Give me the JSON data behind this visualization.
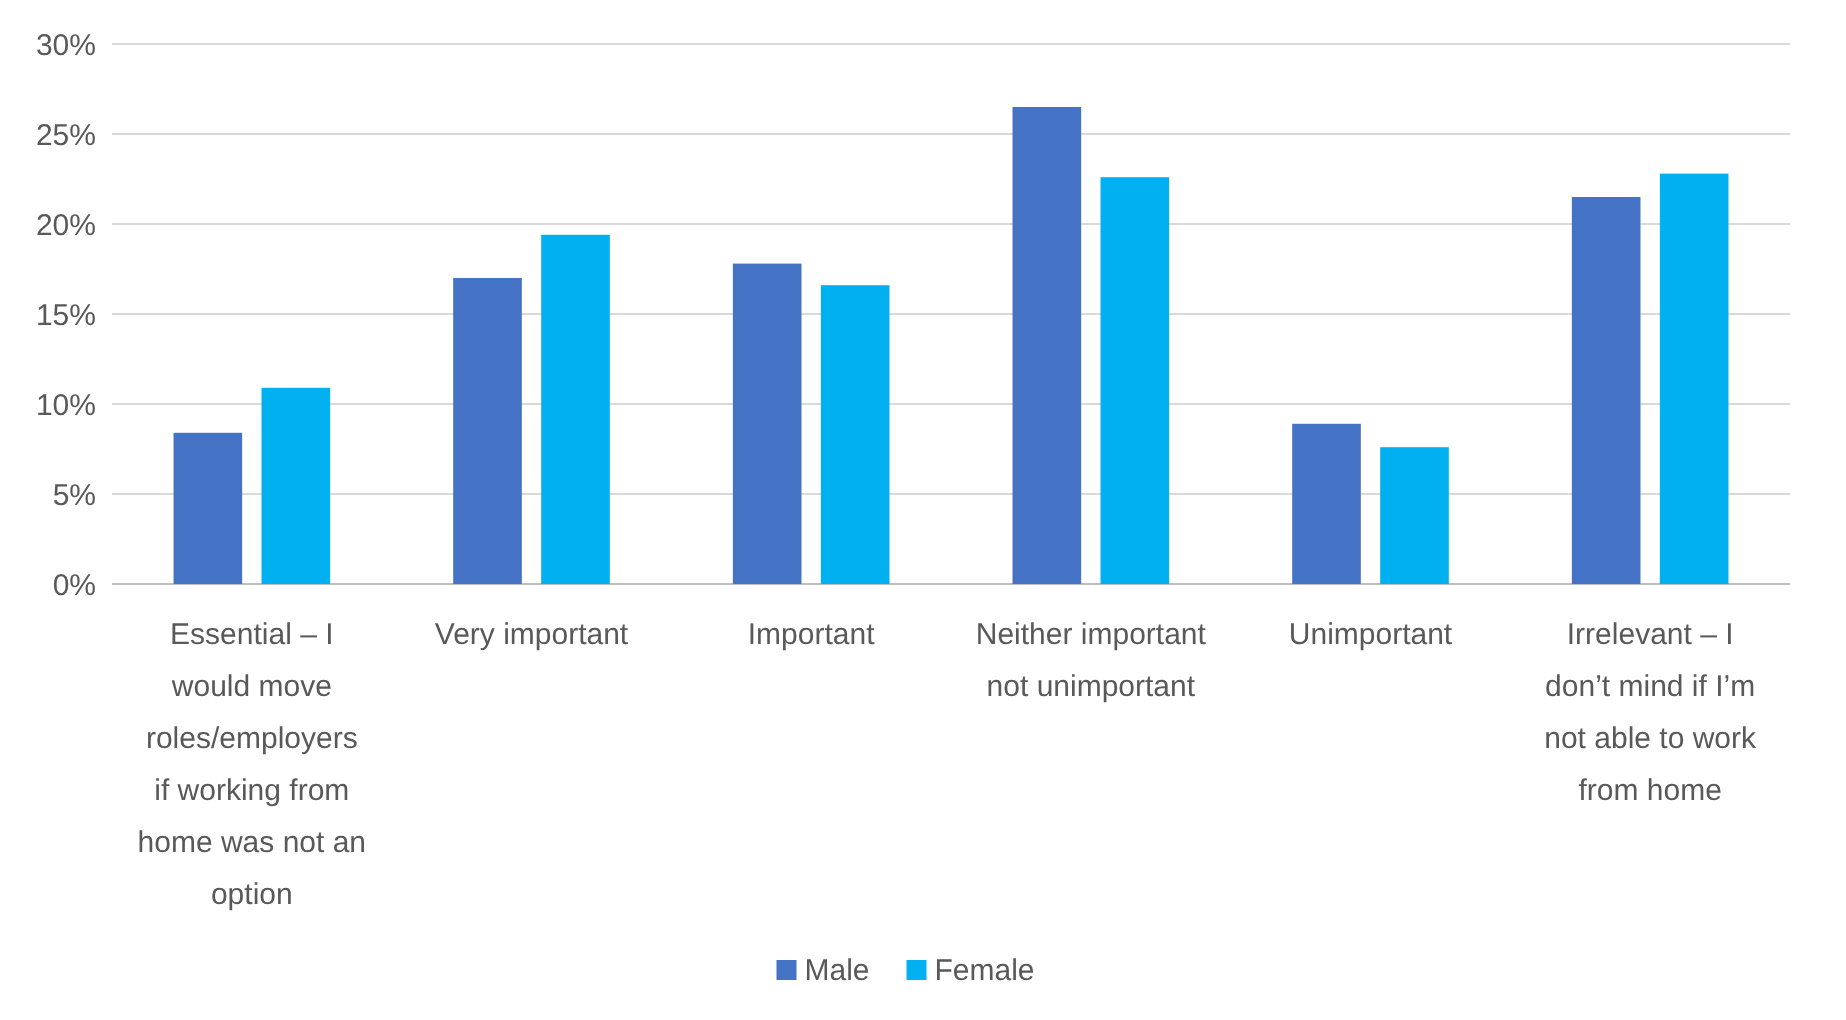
{
  "chart_data": {
    "type": "bar",
    "categories": [
      "Essential – I would move roles/employers if working from home was not an option",
      "Very important",
      "Important",
      "Neither important not unimportant",
      "Unimportant",
      "Irrelevant – I don’t mind if I’m not able to work from home"
    ],
    "series": [
      {
        "name": "Male",
        "color": "#4472c4",
        "values": [
          8.4,
          17.0,
          17.8,
          26.5,
          8.9,
          21.5
        ]
      },
      {
        "name": "Female",
        "color": "#00b0f0",
        "values": [
          10.9,
          19.4,
          16.6,
          22.6,
          7.6,
          22.8
        ]
      }
    ],
    "ylim": [
      0,
      30
    ],
    "yticks": [
      {
        "value": 0,
        "label": "0%"
      },
      {
        "value": 5,
        "label": "5%"
      },
      {
        "value": 10,
        "label": "10%"
      },
      {
        "value": 15,
        "label": "15%"
      },
      {
        "value": 20,
        "label": "20%"
      },
      {
        "value": 25,
        "label": "25%"
      },
      {
        "value": 30,
        "label": "30%"
      }
    ],
    "grid": "y",
    "legend": "bottom"
  }
}
